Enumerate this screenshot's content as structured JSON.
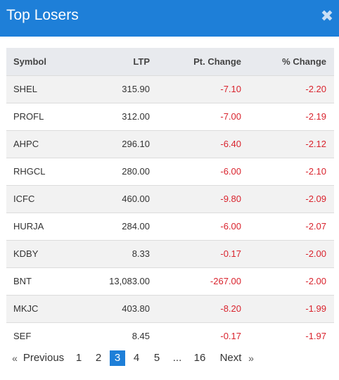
{
  "header": {
    "title": "Top Losers",
    "close_glyph": "✖"
  },
  "table": {
    "columns": [
      "Symbol",
      "LTP",
      "Pt. Change",
      "% Change"
    ],
    "rows": [
      {
        "symbol": "SHEL",
        "ltp": "315.90",
        "pt_change": "-7.10",
        "pct_change": "-2.20"
      },
      {
        "symbol": "PROFL",
        "ltp": "312.00",
        "pt_change": "-7.00",
        "pct_change": "-2.19"
      },
      {
        "symbol": "AHPC",
        "ltp": "296.10",
        "pt_change": "-6.40",
        "pct_change": "-2.12"
      },
      {
        "symbol": "RHGCL",
        "ltp": "280.00",
        "pt_change": "-6.00",
        "pct_change": "-2.10"
      },
      {
        "symbol": "ICFC",
        "ltp": "460.00",
        "pt_change": "-9.80",
        "pct_change": "-2.09"
      },
      {
        "symbol": "HURJA",
        "ltp": "284.00",
        "pt_change": "-6.00",
        "pct_change": "-2.07"
      },
      {
        "symbol": "KDBY",
        "ltp": "8.33",
        "pt_change": "-0.17",
        "pct_change": "-2.00"
      },
      {
        "symbol": "BNT",
        "ltp": "13,083.00",
        "pt_change": "-267.00",
        "pct_change": "-2.00"
      },
      {
        "symbol": "MKJC",
        "ltp": "403.80",
        "pt_change": "-8.20",
        "pct_change": "-1.99"
      },
      {
        "symbol": "SEF",
        "ltp": "8.45",
        "pt_change": "-0.17",
        "pct_change": "-1.97"
      }
    ]
  },
  "pagination": {
    "prev_arrow": "«",
    "prev_label": "Previous",
    "pages": [
      "1",
      "2",
      "3",
      "4",
      "5",
      "...",
      "16"
    ],
    "current": "3",
    "next_label": "Next",
    "next_arrow": "»"
  },
  "colors": {
    "header_bg": "#1e7fd8",
    "negative": "#d9232d",
    "active_page": "#1e7fd8"
  }
}
